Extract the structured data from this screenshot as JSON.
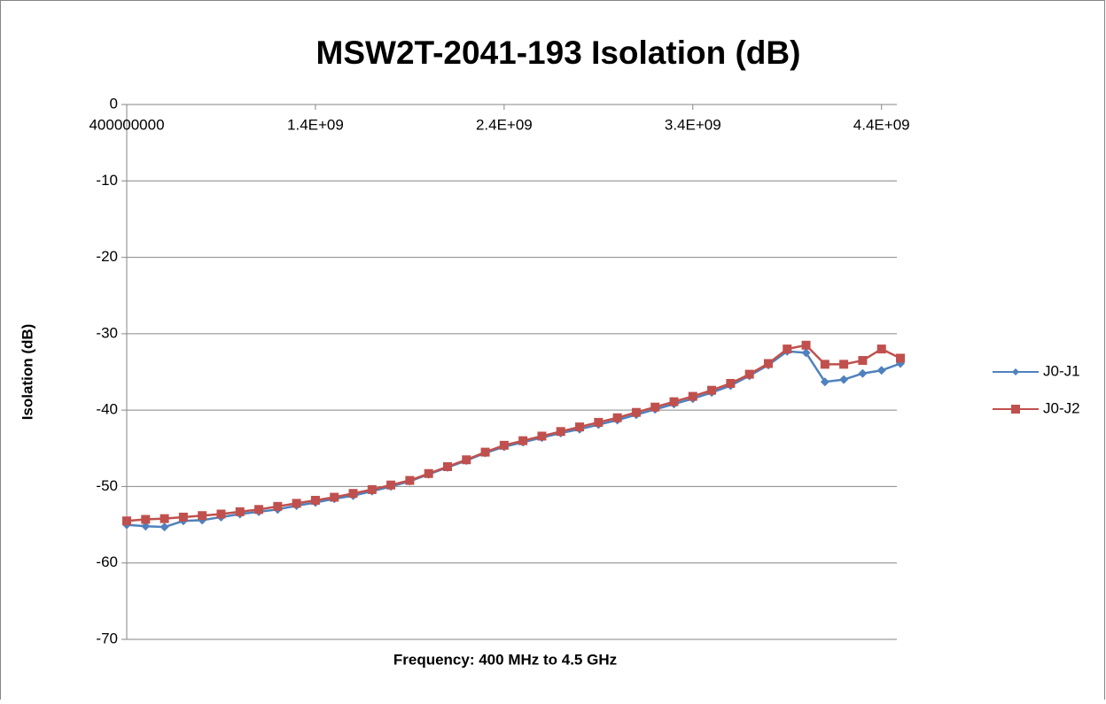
{
  "chart_data": {
    "type": "line",
    "title": "MSW2T-2041-193 Isolation (dB)",
    "xlabel": "Frequency:  400 MHz to 4.5 GHz",
    "ylabel": "Isolation (dB)",
    "x": [
      400000000,
      500000000,
      600000000,
      700000000,
      800000000,
      900000000,
      1000000000,
      1100000000,
      1200000000,
      1300000000,
      1400000000,
      1500000000,
      1600000000,
      1700000000,
      1800000000,
      1900000000,
      2000000000,
      2100000000,
      2200000000,
      2300000000,
      2400000000,
      2500000000,
      2600000000,
      2700000000,
      2800000000,
      2900000000,
      3000000000,
      3100000000,
      3200000000,
      3300000000,
      3400000000,
      3500000000,
      3600000000,
      3700000000,
      3800000000,
      3900000000,
      4000000000,
      4100000000,
      4200000000,
      4300000000,
      4400000000,
      4500000000
    ],
    "series": [
      {
        "name": "J0-J1",
        "color": "#4f81bd",
        "marker": "diamond",
        "values": [
          -55.0,
          -55.2,
          -55.3,
          -54.5,
          -54.4,
          -54.0,
          -53.6,
          -53.3,
          -53.0,
          -52.5,
          -52.1,
          -51.6,
          -51.2,
          -50.6,
          -50.0,
          -49.3,
          -48.4,
          -47.5,
          -46.6,
          -45.6,
          -44.8,
          -44.2,
          -43.6,
          -43.0,
          -42.5,
          -41.9,
          -41.3,
          -40.6,
          -39.9,
          -39.2,
          -38.5,
          -37.7,
          -36.8,
          -35.5,
          -34.1,
          -32.3,
          -32.5,
          -36.3,
          -36.0,
          -35.2,
          -34.8,
          -33.9
        ]
      },
      {
        "name": "J0-J2",
        "color": "#c0504d",
        "marker": "square",
        "values": [
          -54.5,
          -54.3,
          -54.2,
          -54.0,
          -53.8,
          -53.6,
          -53.3,
          -53.0,
          -52.6,
          -52.2,
          -51.8,
          -51.4,
          -50.9,
          -50.4,
          -49.8,
          -49.2,
          -48.3,
          -47.4,
          -46.5,
          -45.5,
          -44.6,
          -44.0,
          -43.4,
          -42.8,
          -42.2,
          -41.6,
          -41.0,
          -40.3,
          -39.6,
          -38.9,
          -38.2,
          -37.4,
          -36.5,
          -35.3,
          -33.9,
          -32.0,
          -31.5,
          -34.0,
          -34.0,
          -33.5,
          -32.0,
          -33.2
        ]
      }
    ],
    "xlim": [
      400000000,
      4500000000
    ],
    "xticks": [
      400000000,
      {
        "value": 1400000000,
        "label": "1.4E+09"
      },
      {
        "value": 2400000000,
        "label": "2.4E+09"
      },
      {
        "value": 3400000000,
        "label": "3.4E+09"
      },
      {
        "value": 4400000000,
        "label": "4.4E+09"
      }
    ],
    "ylim": [
      -70,
      0
    ],
    "yticks": [
      0,
      -10,
      -20,
      -30,
      -40,
      -50,
      -60,
      -70
    ],
    "grid": true,
    "legend": "right"
  }
}
